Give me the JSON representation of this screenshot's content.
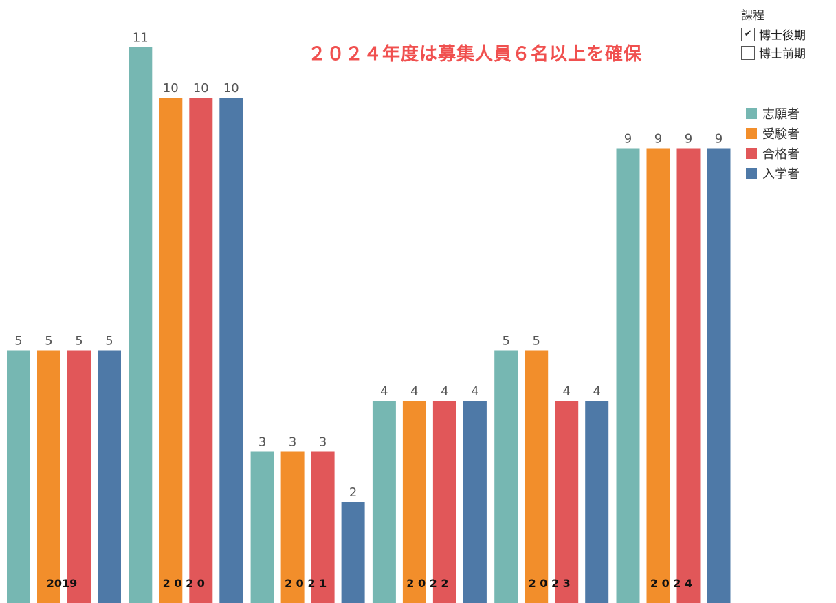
{
  "headline": "２０２４年度は募集人員６名以上を確保",
  "filter": {
    "title": "課程",
    "options": [
      {
        "label": "博士後期",
        "checked": true,
        "mark": "✔"
      },
      {
        "label": "博士前期",
        "checked": false,
        "mark": ""
      }
    ]
  },
  "colors": {
    "志願者": "#76b7b2",
    "受験者": "#f28e2b",
    "合格者": "#e15759",
    "入学者": "#4e79a7"
  },
  "chart_data": {
    "type": "bar",
    "categories": [
      "2019",
      "2020",
      "2021",
      "2022",
      "2023",
      "2024"
    ],
    "category_labels": [
      "2019",
      "2 0 2 0",
      "2 0 2 1",
      "2 0 2 2",
      "2 0 2 3",
      "2 0 2 4"
    ],
    "series": [
      {
        "name": "志願者",
        "values": [
          5,
          11,
          3,
          4,
          5,
          9
        ]
      },
      {
        "name": "受験者",
        "values": [
          5,
          10,
          3,
          4,
          5,
          9
        ]
      },
      {
        "name": "合格者",
        "values": [
          5,
          10,
          3,
          4,
          4,
          9
        ]
      },
      {
        "name": "入学者",
        "values": [
          5,
          10,
          2,
          4,
          4,
          9
        ]
      }
    ],
    "ylim": [
      0,
      11
    ],
    "grid": false,
    "data_labels": true,
    "legend_position": "right"
  }
}
